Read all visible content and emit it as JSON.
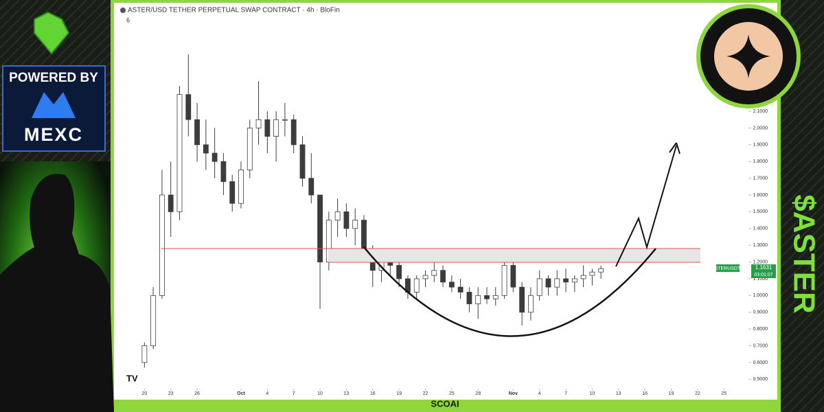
{
  "header": {
    "title": "ASTER/USD TETHER PERPETUAL SWAP CONTRACT · 4h · BloFin",
    "indicator": "6"
  },
  "chart_data": {
    "type": "candlestick",
    "x": [
      0,
      1,
      2,
      3,
      4,
      5,
      6,
      7,
      8,
      9,
      10,
      11,
      12,
      13,
      14,
      15,
      16,
      17,
      18,
      19,
      20,
      21,
      22,
      23,
      24,
      25,
      26,
      27,
      28,
      29,
      30,
      31,
      32,
      33,
      34,
      35,
      36,
      37,
      38,
      39,
      40,
      41,
      42,
      43,
      44,
      45,
      46,
      47,
      48,
      49,
      50,
      51,
      52
    ],
    "open": [
      0.6,
      0.7,
      1.0,
      1.6,
      1.5,
      2.2,
      2.05,
      1.9,
      1.85,
      1.8,
      1.68,
      1.55,
      1.75,
      2.0,
      2.05,
      1.95,
      2.05,
      2.05,
      1.9,
      1.7,
      1.6,
      1.2,
      1.45,
      1.5,
      1.4,
      1.45,
      1.28,
      1.15,
      1.2,
      1.18,
      1.1,
      1.02,
      1.1,
      1.12,
      1.15,
      1.08,
      1.05,
      1.02,
      0.95,
      1.0,
      0.98,
      1.0,
      1.18,
      1.05,
      0.9,
      1.0,
      1.1,
      1.05,
      1.1,
      1.08,
      1.1,
      1.12,
      1.14
    ],
    "high": [
      0.72,
      1.05,
      1.75,
      1.8,
      2.25,
      2.44,
      2.15,
      2.05,
      2.0,
      1.85,
      1.72,
      1.8,
      2.05,
      2.28,
      2.1,
      2.1,
      2.15,
      2.08,
      1.95,
      1.85,
      1.6,
      1.5,
      1.58,
      1.55,
      1.52,
      1.48,
      1.3,
      1.22,
      1.24,
      1.2,
      1.12,
      1.12,
      1.15,
      1.22,
      1.18,
      1.12,
      1.1,
      1.05,
      1.05,
      1.05,
      1.05,
      1.28,
      1.25,
      1.08,
      1.05,
      1.15,
      1.12,
      1.15,
      1.16,
      1.12,
      1.18,
      1.16,
      1.18
    ],
    "low": [
      0.57,
      0.68,
      0.98,
      1.35,
      1.45,
      1.95,
      1.8,
      1.75,
      1.7,
      1.6,
      1.5,
      1.52,
      1.7,
      1.9,
      1.85,
      1.8,
      1.95,
      1.85,
      1.65,
      1.55,
      0.92,
      1.15,
      1.35,
      1.35,
      1.3,
      1.25,
      1.05,
      1.08,
      1.12,
      1.05,
      0.98,
      0.98,
      1.05,
      1.08,
      1.05,
      1.02,
      0.98,
      0.9,
      0.86,
      0.95,
      0.94,
      0.98,
      1.02,
      0.82,
      0.85,
      0.97,
      1.0,
      1.0,
      1.02,
      1.02,
      1.05,
      1.06,
      1.1
    ],
    "close": [
      0.7,
      1.0,
      1.6,
      1.5,
      2.2,
      2.05,
      1.9,
      1.85,
      1.8,
      1.68,
      1.55,
      1.75,
      2.0,
      2.05,
      1.95,
      2.05,
      2.05,
      1.9,
      1.7,
      1.6,
      1.2,
      1.45,
      1.5,
      1.4,
      1.45,
      1.28,
      1.15,
      1.2,
      1.18,
      1.1,
      1.02,
      1.1,
      1.12,
      1.15,
      1.08,
      1.05,
      1.02,
      0.95,
      1.0,
      0.98,
      1.0,
      1.18,
      1.05,
      0.9,
      1.0,
      1.1,
      1.05,
      1.1,
      1.08,
      1.1,
      1.12,
      1.14,
      1.16
    ],
    "up_color": "#ffffff",
    "down_color": "#3c3c3c",
    "wick_color": "#3c3c3c",
    "xlim": [
      -3,
      68.8
    ],
    "ylim": [
      0.407,
      2.674
    ],
    "xticks": [
      {
        "value": 0,
        "label": "20"
      },
      {
        "value": 3,
        "label": "23"
      },
      {
        "value": 6,
        "label": "26"
      },
      {
        "value": 11,
        "label": "Oct"
      },
      {
        "value": 14,
        "label": "4"
      },
      {
        "value": 17,
        "label": "7"
      },
      {
        "value": 20,
        "label": "10"
      },
      {
        "value": 23,
        "label": "13"
      },
      {
        "value": 26,
        "label": "16"
      },
      {
        "value": 29,
        "label": "19"
      },
      {
        "value": 32,
        "label": "22"
      },
      {
        "value": 35,
        "label": "25"
      },
      {
        "value": 38,
        "label": "28"
      },
      {
        "value": 42,
        "label": "Nov"
      },
      {
        "value": 45,
        "label": "4"
      },
      {
        "value": 48,
        "label": "7"
      },
      {
        "value": 51,
        "label": "10"
      },
      {
        "value": 54,
        "label": "13"
      },
      {
        "value": 57,
        "label": "16"
      },
      {
        "value": 60,
        "label": "19"
      },
      {
        "value": 63,
        "label": "22"
      },
      {
        "value": 66,
        "label": "25"
      }
    ],
    "yticks": [
      {
        "value": 0.5,
        "label": "0.5000"
      },
      {
        "value": 0.6,
        "label": "0.6000"
      },
      {
        "value": 0.7,
        "label": "0.7000"
      },
      {
        "value": 0.8,
        "label": "0.8000"
      },
      {
        "value": 0.9,
        "label": "0.9000"
      },
      {
        "value": 1.0,
        "label": "1.0000"
      },
      {
        "value": 1.1,
        "label": "1.1000"
      },
      {
        "value": 1.2,
        "label": "1.2000"
      },
      {
        "value": 1.3,
        "label": "1.3000"
      },
      {
        "value": 1.4,
        "label": "1.4000"
      },
      {
        "value": 1.5,
        "label": "1.5000"
      },
      {
        "value": 1.6,
        "label": "1.6000"
      },
      {
        "value": 1.7,
        "label": "1.7000"
      },
      {
        "value": 1.8,
        "label": "1.8000"
      },
      {
        "value": 1.9,
        "label": "1.9000"
      },
      {
        "value": 2.0,
        "label": "2.0000"
      },
      {
        "value": 2.1,
        "label": "2.1000"
      }
    ]
  },
  "price_tag": {
    "symbol": "ASTERUSDT.P",
    "price": "1.1631",
    "countdown": "03:01:07"
  },
  "sidebar": {
    "powered_by": "POWERED BY",
    "brand": "MEXC",
    "ticker": "$ASTER"
  },
  "footer": "SCOAI"
}
